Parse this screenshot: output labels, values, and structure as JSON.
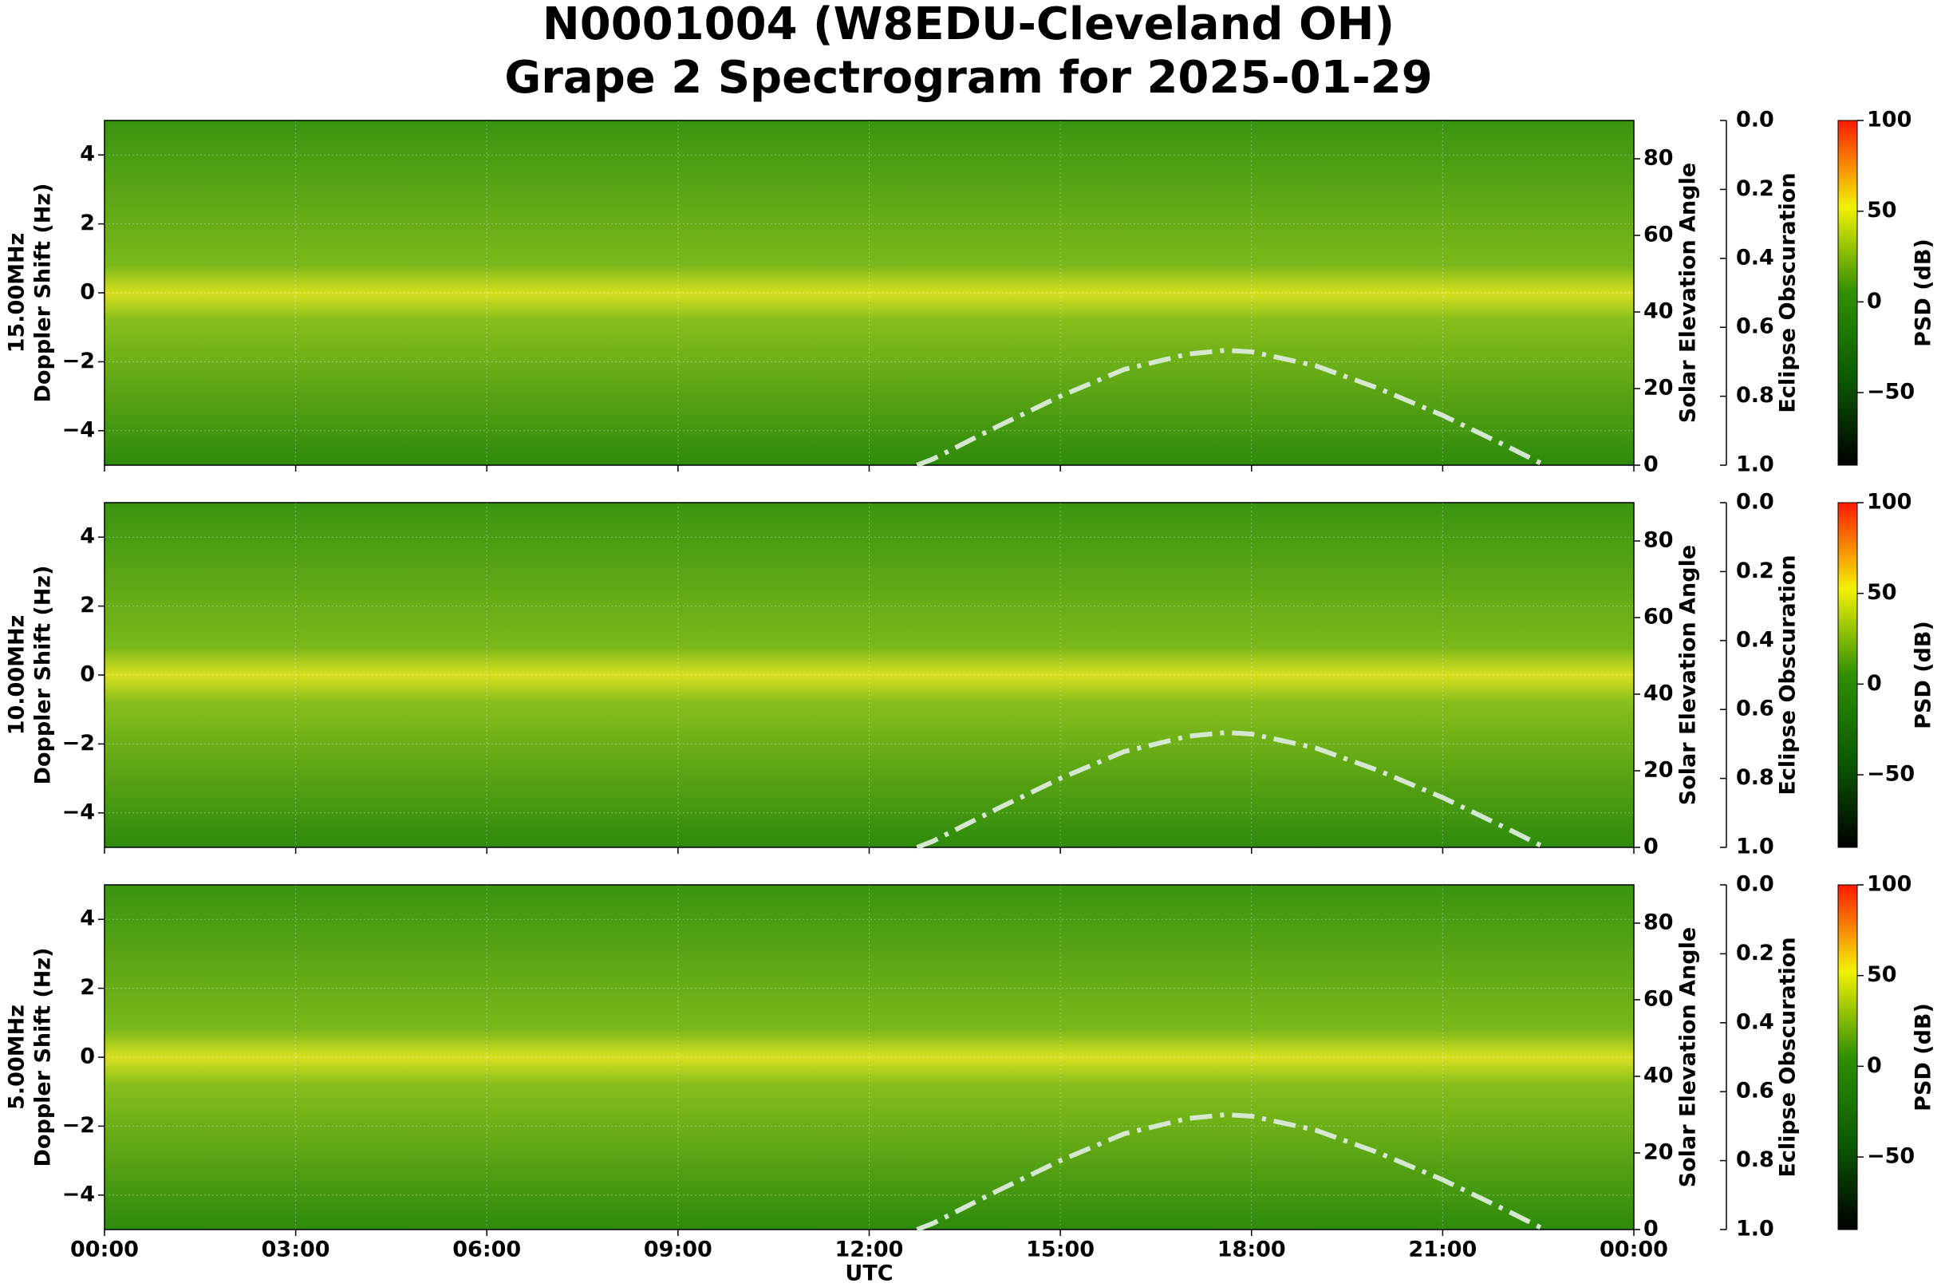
{
  "title": [
    "N0001004 (W8EDU-Cleveland OH)",
    "Grape 2 Spectrogram for 2025-01-29"
  ],
  "chart_data": [
    {
      "type": "spectrogram",
      "ylabel": [
        "15.00MHz",
        "Doppler Shift (Hz)"
      ],
      "y2label": "Solar Elevation Angle",
      "y3label": "Eclipse Obscuration",
      "clabel": "PSD (dB)",
      "xlim": [
        0,
        24
      ],
      "ylim": [
        -5,
        5
      ],
      "yticks": [
        {
          "value": -4,
          "label": "−4"
        },
        {
          "value": -2,
          "label": "−2"
        },
        0,
        2,
        4
      ],
      "y2lim": [
        0,
        90
      ],
      "y2ticks": [
        0,
        20,
        40,
        60,
        80
      ],
      "y3lim": [
        1,
        0
      ],
      "y3ticks": [
        {
          "value": 0,
          "label": "0.0"
        },
        0.2,
        0.4,
        0.6,
        0.8,
        {
          "value": 1,
          "label": "1.0"
        }
      ],
      "clim": [
        -90,
        100
      ],
      "cticks": [
        {
          "value": -50,
          "label": "−50"
        },
        0,
        50,
        100
      ],
      "colormap": [
        "#000000",
        "#0b5a00",
        "#2f8f00",
        "#f2f200",
        "#ff1a00"
      ],
      "series": [
        {
          "axis": "y2",
          "color": "#d4e8d0",
          "x": [
            12.75,
            13,
            14,
            15,
            16,
            17,
            17.6,
            18,
            19,
            20,
            21,
            22,
            22.6
          ],
          "values": [
            0,
            1.6,
            10,
            18,
            25,
            29,
            30,
            29.6,
            26,
            20,
            13,
            5,
            0
          ]
        }
      ]
    },
    {
      "type": "spectrogram",
      "ylabel": [
        "10.00MHz",
        "Doppler Shift (Hz)"
      ],
      "y2label": "Solar Elevation Angle",
      "y3label": "Eclipse Obscuration",
      "clabel": "PSD (dB)",
      "xlim": [
        0,
        24
      ],
      "ylim": [
        -5,
        5
      ],
      "yticks": [
        {
          "value": -4,
          "label": "−4"
        },
        {
          "value": -2,
          "label": "−2"
        },
        0,
        2,
        4
      ],
      "y2lim": [
        0,
        90
      ],
      "y2ticks": [
        0,
        20,
        40,
        60,
        80
      ],
      "y3lim": [
        1,
        0
      ],
      "y3ticks": [
        {
          "value": 0,
          "label": "0.0"
        },
        0.2,
        0.4,
        0.6,
        0.8,
        {
          "value": 1,
          "label": "1.0"
        }
      ],
      "clim": [
        -90,
        100
      ],
      "cticks": [
        {
          "value": -50,
          "label": "−50"
        },
        0,
        50,
        100
      ],
      "colormap": [
        "#000000",
        "#0b5a00",
        "#2f8f00",
        "#f2f200",
        "#ff1a00"
      ],
      "series": [
        {
          "axis": "y2",
          "color": "#d4e8d0",
          "x": [
            12.75,
            13,
            14,
            15,
            16,
            17,
            17.6,
            18,
            19,
            20,
            21,
            22,
            22.6
          ],
          "values": [
            0,
            1.6,
            10,
            18,
            25,
            29,
            30,
            29.6,
            26,
            20,
            13,
            5,
            0
          ]
        }
      ]
    },
    {
      "type": "spectrogram",
      "ylabel": [
        "5.00MHz",
        "Doppler Shift (Hz)"
      ],
      "y2label": "Solar Elevation Angle",
      "y3label": "Eclipse Obscuration",
      "clabel": "PSD (dB)",
      "xlabel": "UTC",
      "xlim": [
        0,
        24
      ],
      "xticks": [
        {
          "value": 0,
          "label": "00:00"
        },
        {
          "value": 3,
          "label": "03:00"
        },
        {
          "value": 6,
          "label": "06:00"
        },
        {
          "value": 9,
          "label": "09:00"
        },
        {
          "value": 12,
          "label": "12:00"
        },
        {
          "value": 15,
          "label": "15:00"
        },
        {
          "value": 18,
          "label": "18:00"
        },
        {
          "value": 21,
          "label": "21:00"
        },
        {
          "value": 24,
          "label": "00:00"
        }
      ],
      "ylim": [
        -5,
        5
      ],
      "yticks": [
        {
          "value": -4,
          "label": "−4"
        },
        {
          "value": -2,
          "label": "−2"
        },
        0,
        2,
        4
      ],
      "y2lim": [
        0,
        90
      ],
      "y2ticks": [
        0,
        20,
        40,
        60,
        80
      ],
      "y3lim": [
        1,
        0
      ],
      "y3ticks": [
        {
          "value": 0,
          "label": "0.0"
        },
        0.2,
        0.4,
        0.6,
        0.8,
        {
          "value": 1,
          "label": "1.0"
        }
      ],
      "clim": [
        -90,
        100
      ],
      "cticks": [
        {
          "value": -50,
          "label": "−50"
        },
        0,
        50,
        100
      ],
      "colormap": [
        "#000000",
        "#0b5a00",
        "#2f8f00",
        "#f2f200",
        "#ff1a00"
      ],
      "series": [
        {
          "axis": "y2",
          "color": "#d4e8d0",
          "x": [
            12.75,
            13,
            14,
            15,
            16,
            17,
            17.6,
            18,
            19,
            20,
            21,
            22,
            22.6
          ],
          "values": [
            0,
            1.6,
            10,
            18,
            25,
            29,
            30,
            29.6,
            26,
            20,
            13,
            5,
            0
          ]
        }
      ]
    }
  ]
}
